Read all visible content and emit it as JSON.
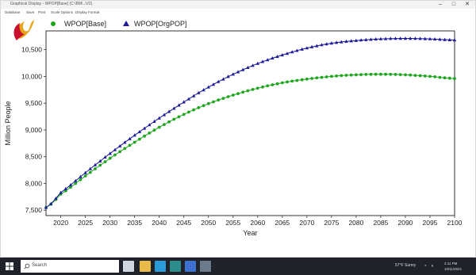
{
  "window": {
    "title": "Graphical Display - WPOP[Base] (C:\\BM\\..\\V2)",
    "controls": {
      "minimize": "–",
      "maximize": "□",
      "close": "✕"
    }
  },
  "menu": [
    "Database",
    "Save",
    "Print",
    "Scale Options",
    "Display Format"
  ],
  "logo": {
    "icon": "wave-logo-icon",
    "colors": [
      "#e8a317",
      "#c8102e"
    ]
  },
  "legend": [
    {
      "label": "WPOP[Base]",
      "marker": "circle",
      "color": "#1fa61f"
    },
    {
      "label": "WPOP[OrgPOP]",
      "marker": "triangle",
      "color": "#1c1c9a"
    }
  ],
  "chart_data": {
    "type": "line",
    "xlabel": "Year",
    "ylabel": "Million People",
    "xlim": [
      2017,
      2100
    ],
    "ylim": [
      7400,
      10850
    ],
    "x_ticks": [
      2020,
      2025,
      2030,
      2035,
      2040,
      2045,
      2050,
      2055,
      2060,
      2065,
      2070,
      2075,
      2080,
      2085,
      2090,
      2095,
      2100
    ],
    "y_ticks": [
      7500,
      8000,
      8500,
      9000,
      9500,
      10000,
      10500
    ],
    "y_tick_labels": [
      "7,500",
      "8,000",
      "8,500",
      "9,000",
      "9,500",
      "10,000",
      "10,500"
    ],
    "grid": false,
    "legend_position": "top-left",
    "series": [
      {
        "name": "WPOP[Base]",
        "marker": "circle",
        "color": "#1fa61f",
        "x": [
          2017,
          2020,
          2025,
          2030,
          2035,
          2040,
          2045,
          2050,
          2055,
          2060,
          2065,
          2070,
          2075,
          2080,
          2085,
          2090,
          2095,
          2100
        ],
        "y": [
          7550,
          7800,
          8140,
          8470,
          8770,
          9050,
          9290,
          9490,
          9650,
          9780,
          9880,
          9950,
          10000,
          10030,
          10040,
          10030,
          10000,
          9960
        ]
      },
      {
        "name": "WPOP[OrgPOP]",
        "marker": "triangle",
        "color": "#1c1c9a",
        "x": [
          2017,
          2020,
          2025,
          2030,
          2035,
          2040,
          2045,
          2050,
          2055,
          2060,
          2065,
          2070,
          2075,
          2080,
          2085,
          2090,
          2095,
          2100
        ],
        "y": [
          7550,
          7830,
          8200,
          8560,
          8900,
          9220,
          9520,
          9800,
          10040,
          10240,
          10400,
          10530,
          10620,
          10670,
          10700,
          10710,
          10700,
          10680
        ]
      }
    ]
  },
  "taskbar": {
    "search_placeholder": "Search",
    "apps": [
      {
        "icon": "task-view-icon",
        "color": "#cfd6df"
      },
      {
        "icon": "file-explorer-icon",
        "color": "#e9b949"
      },
      {
        "icon": "edge-browser-icon",
        "color": "#2a9bd8"
      },
      {
        "icon": "app-icon-teal",
        "color": "#2c8c8c"
      },
      {
        "icon": "app-icon-blue",
        "color": "#3d6fd0"
      },
      {
        "icon": "vensim-app-icon",
        "color": "#6b7a8a"
      }
    ],
    "weather": "57°F  Sunny",
    "clock_time": "4:11 PM",
    "clock_date": "10/11/2021"
  }
}
